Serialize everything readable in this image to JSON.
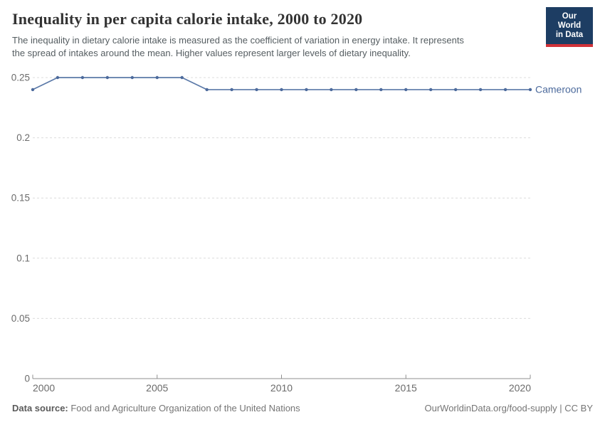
{
  "header": {
    "title": "Inequality in per capita calorie intake, 2000 to 2020",
    "subtitle_lines": [
      "The inequality in dietary calorie intake is measured as the coefficient of variation in energy intake. It represents",
      "the spread of intakes around the mean. Higher values represent larger levels of dietary inequality."
    ],
    "logo": {
      "line1": "Our World",
      "line2": "in Data"
    }
  },
  "chart_data": {
    "type": "line",
    "title": "Inequality in per capita calorie intake, 2000 to 2020",
    "xlabel": "",
    "ylabel": "",
    "x": [
      2000,
      2001,
      2002,
      2003,
      2004,
      2005,
      2006,
      2007,
      2008,
      2009,
      2010,
      2011,
      2012,
      2013,
      2014,
      2015,
      2016,
      2017,
      2018,
      2019,
      2020
    ],
    "series": [
      {
        "name": "Cameroon",
        "values": [
          0.24,
          0.25,
          0.25,
          0.25,
          0.25,
          0.25,
          0.25,
          0.24,
          0.24,
          0.24,
          0.24,
          0.24,
          0.24,
          0.24,
          0.24,
          0.24,
          0.24,
          0.24,
          0.24,
          0.24,
          0.24
        ]
      }
    ],
    "xlim": [
      2000,
      2020
    ],
    "ylim": [
      0,
      0.25
    ],
    "xticks": [
      2000,
      2005,
      2010,
      2015,
      2020
    ],
    "yticks": [
      0,
      0.05,
      0.1,
      0.15,
      0.2,
      0.25
    ],
    "grid": "horizontal-dashed",
    "legend_position": "end-of-line-label"
  },
  "footer": {
    "datasource_label": "Data source:",
    "datasource_text": " Food and Agriculture Organization of the United Nations",
    "credit": "OurWorldinData.org/food-supply | CC BY"
  },
  "colors": {
    "line": "#5b79a8",
    "marker": "#4c6a9c",
    "entity_label": "#4c6a9c",
    "grid": "#dcdcdc",
    "axis": "#8f8f8f",
    "tick_text": "#6b6b6b",
    "logo_bg": "#1d3d63",
    "logo_bar": "#d13239"
  }
}
